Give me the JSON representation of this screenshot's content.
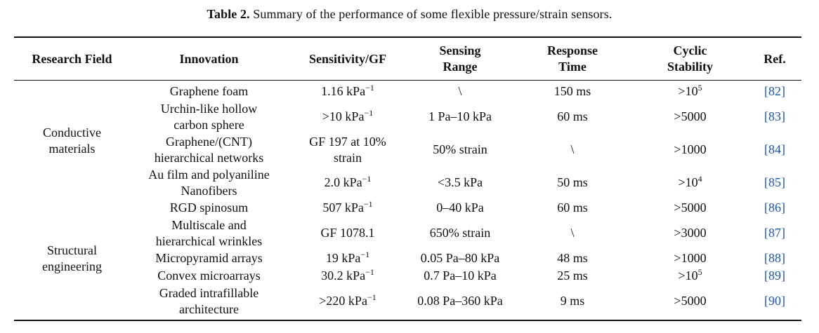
{
  "caption": {
    "label": "Table 2.",
    "text": " Summary of the performance of some flexible pressure/strain sensors."
  },
  "headers": {
    "research_field": "Research Field",
    "innovation": "Innovation",
    "sensitivity": "Sensitivity/GF",
    "sensing_range_1": "Sensing",
    "sensing_range_2": "Range",
    "response_time_1": "Response",
    "response_time_2": "Time",
    "cyclic_stability_1": "Cyclic",
    "cyclic_stability_2": "Stability",
    "ref": "Ref."
  },
  "groups": [
    {
      "field_1": "Conductive",
      "field_2": "materials"
    },
    {
      "field_1": "Structural",
      "field_2": "engineering"
    }
  ],
  "rows": [
    {
      "innovation_1": "Graphene foam",
      "innovation_2": "",
      "sens_1": "1.16 kPa",
      "sens_sup": "−1",
      "sens_2": "",
      "range": "\\",
      "response": "150 ms",
      "cyc": ">10",
      "cyc_sup": "5",
      "ref": "[82]"
    },
    {
      "innovation_1": "Urchin-like hollow",
      "innovation_2": "carbon sphere",
      "sens_1": ">10 kPa",
      "sens_sup": "−1",
      "sens_2": "",
      "range": "1 Pa–10 kPa",
      "response": "60 ms",
      "cyc": ">5000",
      "cyc_sup": "",
      "ref": "[83]"
    },
    {
      "innovation_1": "Graphene/(CNT)",
      "innovation_2": "hierarchical networks",
      "sens_1": "GF 197 at 10%",
      "sens_sup": "",
      "sens_2": "strain",
      "range": "50% strain",
      "response": "\\",
      "cyc": ">1000",
      "cyc_sup": "",
      "ref": "[84]"
    },
    {
      "innovation_1": "Au film and polyaniline",
      "innovation_2": "Nanofibers",
      "sens_1": "2.0 kPa",
      "sens_sup": "−1",
      "sens_2": "",
      "range": "<3.5 kPa",
      "response": "50 ms",
      "cyc": ">10",
      "cyc_sup": "4",
      "ref": "[85]"
    },
    {
      "innovation_1": "RGD spinosum",
      "innovation_2": "",
      "sens_1": "507 kPa",
      "sens_sup": "−1",
      "sens_2": "",
      "range": "0–40 kPa",
      "response": "60 ms",
      "cyc": ">5000",
      "cyc_sup": "",
      "ref": "[86]"
    },
    {
      "innovation_1": "Multiscale and",
      "innovation_2": "hierarchical wrinkles",
      "sens_1": "GF 1078.1",
      "sens_sup": "",
      "sens_2": "",
      "range": "650% strain",
      "response": "\\",
      "cyc": ">3000",
      "cyc_sup": "",
      "ref": "[87]"
    },
    {
      "innovation_1": "Micropyramid arrays",
      "innovation_2": "",
      "sens_1": "19 kPa",
      "sens_sup": "−1",
      "sens_2": "",
      "range": "0.05 Pa–80 kPa",
      "response": "48 ms",
      "cyc": ">1000",
      "cyc_sup": "",
      "ref": "[88]"
    },
    {
      "innovation_1": "Convex microarrays",
      "innovation_2": "",
      "sens_1": "30.2 kPa",
      "sens_sup": "−1",
      "sens_2": "",
      "range": "0.7 Pa–10 kPa",
      "response": "25 ms",
      "cyc": ">10",
      "cyc_sup": "5",
      "ref": "[89]"
    },
    {
      "innovation_1": "Graded intrafillable",
      "innovation_2": "architecture",
      "sens_1": ">220 kPa",
      "sens_sup": "−1",
      "sens_2": "",
      "range": "0.08 Pa–360 kPa",
      "response": "9 ms",
      "cyc": ">5000",
      "cyc_sup": "",
      "ref": "[90]"
    }
  ]
}
